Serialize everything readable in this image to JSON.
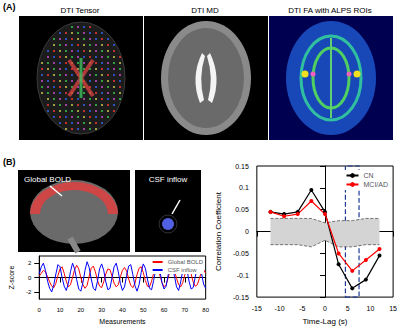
{
  "panels": {
    "A": {
      "label": "(A)",
      "images": [
        "DTI Tensor",
        "DTI MD",
        "DTI FA with ALPS ROIs"
      ]
    },
    "B": {
      "label": "(B)",
      "images": [
        "Global BOLD",
        "CSF inflow"
      ]
    }
  },
  "chart_data": [
    {
      "type": "line",
      "xlabel": "Measurements",
      "ylabel": "Z-score",
      "x": [
        0,
        1,
        2,
        3,
        4,
        5,
        6,
        7,
        8,
        9,
        10,
        11,
        12,
        13,
        14,
        15,
        16,
        17,
        18,
        19,
        20,
        21,
        22,
        23,
        24,
        25,
        26,
        27,
        28,
        29,
        30,
        31,
        32,
        33,
        34,
        35,
        36,
        37,
        38,
        39,
        40,
        41,
        42,
        43,
        44,
        45,
        46,
        47,
        48,
        49,
        50,
        51,
        52,
        53,
        54,
        55,
        56,
        57,
        58,
        59,
        60,
        61,
        62,
        63,
        64,
        65,
        66,
        67,
        68,
        69,
        70,
        71,
        72,
        73,
        74,
        75,
        76,
        77,
        78,
        79,
        80
      ],
      "xlim": [
        0,
        80
      ],
      "xticks": [
        0,
        10,
        20,
        30,
        40,
        50,
        60,
        70,
        80
      ],
      "ylim": [
        -3,
        3
      ],
      "yticks": [
        -2,
        0,
        2
      ],
      "legend": "upper right",
      "series": [
        {
          "name": "Global BOLD",
          "color": "#ff0000",
          "values": [
            0.2,
            0.6,
            1,
            0.8,
            0.1,
            -0.6,
            -1.2,
            -1.4,
            -0.8,
            0.3,
            1.2,
            1.5,
            0.6,
            -0.5,
            -1.3,
            -1,
            0,
            1.1,
            1.7,
            1.2,
            0,
            -1,
            -1.5,
            -1.1,
            0.2,
            1.3,
            1.6,
            0.8,
            -0.4,
            -1.2,
            -1.4,
            -0.6,
            0.5,
            1.2,
            1.1,
            0.2,
            -0.8,
            -1.3,
            -1,
            0.1,
            1,
            1.4,
            0.9,
            -0.2,
            -1.1,
            -1.4,
            -0.8,
            0.4,
            1.3,
            1.5,
            0.7,
            -0.4,
            -1.2,
            -1.3,
            -0.5,
            0.6,
            1.3,
            1.2,
            0.3,
            -0.7,
            -1.3,
            -1,
            0,
            1,
            1.4,
            0.9,
            -0.1,
            -1,
            -1.3,
            -0.7,
            0.4,
            1.3,
            1.4,
            0.5,
            -0.6,
            -1.2,
            -1,
            -0.1,
            0.8,
            1.1,
            0.6
          ]
        },
        {
          "name": "CSF inflow",
          "color": "#0000ff",
          "values": [
            0.5,
            1.5,
            2,
            1,
            -0.5,
            -1.5,
            -2,
            -1,
            0.5,
            1.8,
            1.5,
            0,
            -1.2,
            -1.8,
            -0.8,
            0.8,
            2,
            1.2,
            -0.3,
            -1.6,
            -1.9,
            -0.7,
            1,
            2.2,
            1.4,
            -0.2,
            -1.5,
            -1.8,
            -0.5,
            1.2,
            1.9,
            1,
            -0.6,
            -1.7,
            -1.5,
            0,
            1.5,
            2,
            0.8,
            -0.8,
            -1.8,
            -1.3,
            0.3,
            1.6,
            1.8,
            0.4,
            -1.1,
            -1.9,
            -1,
            0.7,
            1.9,
            1.3,
            -0.2,
            -1.5,
            -1.7,
            -0.4,
            1.1,
            1.8,
            0.9,
            -0.7,
            -1.6,
            -1.2,
            0.4,
            1.7,
            1.6,
            0.2,
            -1.3,
            -1.8,
            -0.6,
            1,
            2,
            1.1,
            -0.5,
            -1.6,
            -1.4,
            0.1,
            1.4,
            1.7,
            0.6,
            -0.9,
            -1.5
          ]
        }
      ]
    },
    {
      "type": "line",
      "xlabel": "Time-Lag (s)",
      "ylabel": "Correlation Coefficient",
      "x": [
        -12,
        -9,
        -6,
        -3,
        0,
        3,
        6,
        9,
        12
      ],
      "xlim": [
        -15,
        15
      ],
      "xticks": [
        -15,
        -10,
        -5,
        0,
        5,
        10,
        15
      ],
      "ylim": [
        -0.15,
        0.15
      ],
      "yticks": [
        -0.15,
        -0.1,
        -0.05,
        0,
        0.05,
        0.1,
        0.15
      ],
      "legend": "upper right",
      "marker": "circle",
      "series": [
        {
          "name": "CN",
          "color": "#000000",
          "values": [
            0.045,
            0.04,
            0.045,
            0.095,
            0.045,
            -0.075,
            -0.13,
            -0.11,
            -0.055
          ]
        },
        {
          "name": "MCI/AD",
          "color": "#ff0000",
          "values": [
            0.045,
            0.035,
            0.04,
            0.07,
            0.04,
            -0.05,
            -0.09,
            -0.065,
            -0.04
          ]
        }
      ],
      "null_band": {
        "upper": [
          0.03,
          0.03,
          0.03,
          0.03,
          0.02,
          0.025,
          0.025,
          0.03,
          0.03
        ],
        "lower": [
          -0.03,
          -0.03,
          -0.03,
          -0.035,
          -0.02,
          -0.035,
          -0.035,
          -0.03,
          -0.03
        ]
      },
      "highlight_window": [
        4.5,
        7.5
      ]
    }
  ]
}
